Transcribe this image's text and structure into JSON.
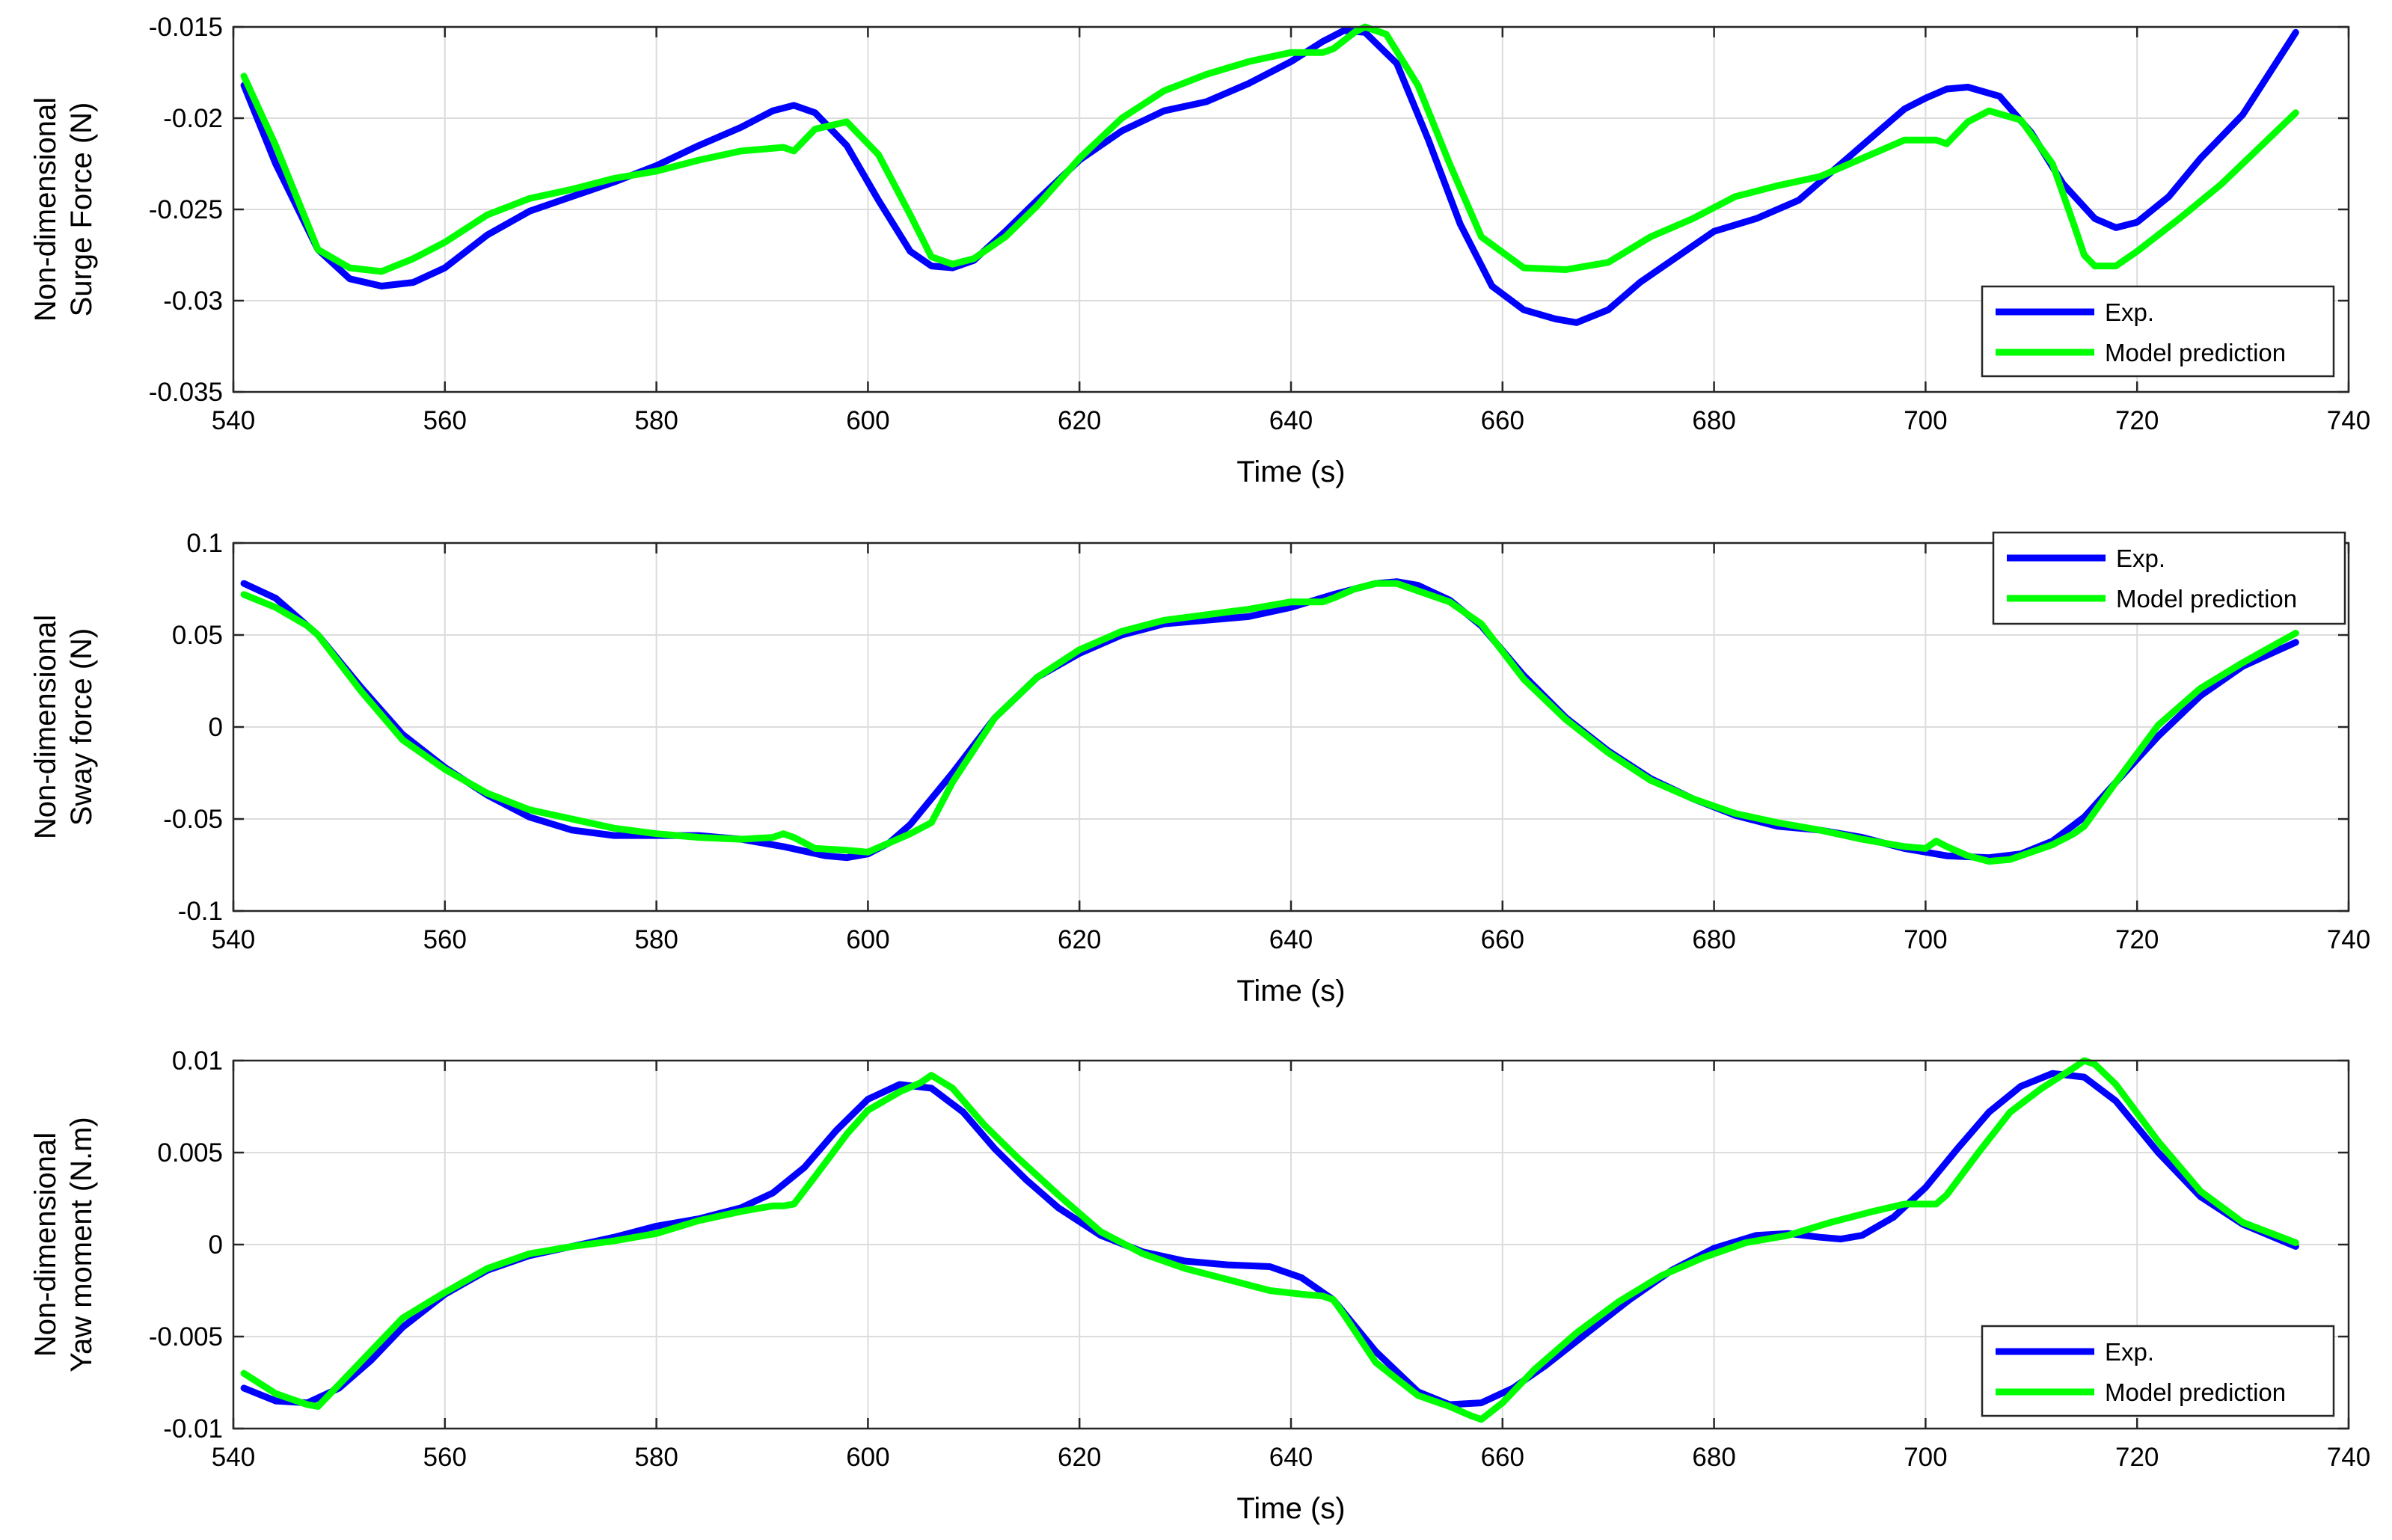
{
  "colors": {
    "exp": "#0000ff",
    "model": "#00ff00",
    "grid": "#dcdcdc",
    "axis": "#262626"
  },
  "chart_data": [
    {
      "type": "line",
      "xlabel": "Time (s)",
      "ylabel": [
        "Non-dimensional",
        "Surge Force (N)"
      ],
      "xlim": [
        540,
        740
      ],
      "ylim": [
        -0.035,
        -0.015
      ],
      "xticks": [
        540,
        560,
        580,
        600,
        620,
        640,
        660,
        680,
        700,
        720,
        740
      ],
      "xtick_labels": [
        "540",
        "560",
        "580",
        "600",
        "620",
        "640",
        "660",
        "680",
        "700",
        "720",
        "740"
      ],
      "yticks": [
        -0.035,
        -0.03,
        -0.025,
        -0.02,
        -0.015
      ],
      "ytick_labels": [
        "-0.035",
        "-0.03",
        "-0.025",
        "-0.02",
        "-0.015"
      ],
      "grid": true,
      "legend_position": "bottom-right",
      "series": [
        {
          "name": "Exp.",
          "color": "#0000ff",
          "x": [
            541,
            544,
            548,
            551,
            554,
            557,
            560,
            564,
            568,
            572,
            576,
            580,
            584,
            588,
            591,
            593,
            595,
            598,
            601,
            604,
            606,
            608,
            610,
            613,
            616,
            620,
            624,
            628,
            632,
            636,
            640,
            643,
            645,
            647,
            650,
            653,
            656,
            659,
            662,
            665,
            667,
            670,
            673,
            676,
            680,
            684,
            688,
            692,
            695,
            698,
            700,
            702,
            704,
            707,
            710,
            713,
            716,
            718,
            720,
            723,
            726,
            730,
            735
          ],
          "y": [
            -0.0182,
            -0.0225,
            -0.0272,
            -0.0288,
            -0.0292,
            -0.029,
            -0.0282,
            -0.0264,
            -0.0251,
            -0.0243,
            -0.0235,
            -0.0226,
            -0.0215,
            -0.0205,
            -0.0196,
            -0.0193,
            -0.0197,
            -0.0215,
            -0.0245,
            -0.0273,
            -0.0281,
            -0.0282,
            -0.0278,
            -0.0262,
            -0.0245,
            -0.0223,
            -0.0207,
            -0.0196,
            -0.0191,
            -0.0181,
            -0.0169,
            -0.0158,
            -0.0152,
            -0.0153,
            -0.017,
            -0.0212,
            -0.0258,
            -0.0292,
            -0.0305,
            -0.031,
            -0.0312,
            -0.0305,
            -0.029,
            -0.0278,
            -0.0262,
            -0.0255,
            -0.0245,
            -0.0225,
            -0.021,
            -0.0195,
            -0.0189,
            -0.0184,
            -0.0183,
            -0.0188,
            -0.0208,
            -0.0236,
            -0.0255,
            -0.026,
            -0.0257,
            -0.0243,
            -0.0222,
            -0.0198,
            -0.0153
          ]
        },
        {
          "name": "Model prediction",
          "color": "#00ff00",
          "x": [
            541,
            544,
            548,
            551,
            554,
            557,
            560,
            564,
            568,
            572,
            576,
            580,
            584,
            588,
            592,
            593,
            595,
            598,
            601,
            604,
            606,
            608,
            610,
            613,
            616,
            620,
            624,
            628,
            632,
            636,
            640,
            643,
            644,
            646,
            647,
            649,
            652,
            655,
            658,
            662,
            666,
            670,
            674,
            678,
            682,
            686,
            690,
            694,
            698,
            701,
            702,
            704,
            706,
            709,
            712,
            714,
            715,
            716,
            718,
            720,
            724,
            728,
            735
          ],
          "y": [
            -0.0177,
            -0.0215,
            -0.0272,
            -0.0282,
            -0.0284,
            -0.0277,
            -0.0268,
            -0.0253,
            -0.0244,
            -0.0239,
            -0.0233,
            -0.0229,
            -0.0223,
            -0.0218,
            -0.0216,
            -0.0218,
            -0.0206,
            -0.0202,
            -0.022,
            -0.0253,
            -0.0276,
            -0.028,
            -0.0277,
            -0.0265,
            -0.0248,
            -0.0222,
            -0.02,
            -0.0185,
            -0.0176,
            -0.0169,
            -0.0164,
            -0.0164,
            -0.0162,
            -0.0153,
            -0.015,
            -0.0154,
            -0.0182,
            -0.0225,
            -0.0265,
            -0.0282,
            -0.0283,
            -0.0279,
            -0.0265,
            -0.0255,
            -0.0243,
            -0.0237,
            -0.0232,
            -0.0222,
            -0.0212,
            -0.0212,
            -0.0214,
            -0.0202,
            -0.0196,
            -0.0201,
            -0.0225,
            -0.0258,
            -0.0275,
            -0.0281,
            -0.0281,
            -0.0273,
            -0.0255,
            -0.0236,
            -0.0197
          ]
        }
      ]
    },
    {
      "type": "line",
      "xlabel": "Time (s)",
      "ylabel": [
        "Non-dimensional",
        "Sway force (N)"
      ],
      "xlim": [
        540,
        740
      ],
      "ylim": [
        -0.1,
        0.1
      ],
      "xticks": [
        540,
        560,
        580,
        600,
        620,
        640,
        660,
        680,
        700,
        720,
        740
      ],
      "xtick_labels": [
        "540",
        "560",
        "580",
        "600",
        "620",
        "640",
        "660",
        "680",
        "700",
        "720",
        "740"
      ],
      "yticks": [
        -0.1,
        -0.05,
        0,
        0.05,
        0.1
      ],
      "ytick_labels": [
        "-0.1",
        "-0.05",
        "0",
        "0.05",
        "0.1"
      ],
      "grid": true,
      "legend_position": "top-right",
      "series": [
        {
          "name": "Exp.",
          "color": "#0000ff",
          "x": [
            541,
            544,
            548,
            552,
            556,
            560,
            564,
            568,
            572,
            576,
            580,
            584,
            588,
            592,
            596,
            598,
            600,
            602,
            604,
            608,
            612,
            616,
            620,
            624,
            628,
            632,
            636,
            640,
            644,
            648,
            650,
            652,
            655,
            658,
            662,
            666,
            670,
            674,
            678,
            682,
            686,
            690,
            694,
            698,
            702,
            706,
            709,
            712,
            715,
            718,
            722,
            726,
            730,
            735
          ],
          "y": [
            0.078,
            0.07,
            0.05,
            0.022,
            -0.004,
            -0.022,
            -0.037,
            -0.049,
            -0.056,
            -0.059,
            -0.059,
            -0.059,
            -0.061,
            -0.065,
            -0.07,
            -0.071,
            -0.069,
            -0.063,
            -0.053,
            -0.025,
            0.005,
            0.027,
            0.04,
            0.05,
            0.056,
            0.058,
            0.06,
            0.065,
            0.072,
            0.078,
            0.079,
            0.077,
            0.069,
            0.055,
            0.028,
            0.005,
            -0.013,
            -0.028,
            -0.039,
            -0.048,
            -0.054,
            -0.056,
            -0.06,
            -0.066,
            -0.07,
            -0.071,
            -0.069,
            -0.062,
            -0.049,
            -0.03,
            -0.005,
            0.017,
            0.033,
            0.046
          ]
        },
        {
          "name": "Model prediction",
          "color": "#00ff00",
          "x": [
            541,
            544,
            547,
            548,
            552,
            556,
            560,
            564,
            568,
            572,
            576,
            580,
            584,
            588,
            591,
            592,
            593,
            595,
            598,
            600,
            602,
            604,
            606,
            608,
            612,
            616,
            620,
            624,
            628,
            632,
            636,
            640,
            643,
            644,
            646,
            648,
            650,
            652,
            655,
            657,
            658,
            662,
            666,
            670,
            674,
            678,
            682,
            686,
            690,
            694,
            698,
            700,
            701,
            702,
            704,
            706,
            708,
            710,
            712,
            714,
            715,
            718,
            722,
            726,
            730,
            735
          ],
          "y": [
            0.072,
            0.065,
            0.055,
            0.05,
            0.02,
            -0.007,
            -0.023,
            -0.036,
            -0.045,
            -0.05,
            -0.055,
            -0.058,
            -0.06,
            -0.061,
            -0.06,
            -0.058,
            -0.06,
            -0.066,
            -0.067,
            -0.068,
            -0.063,
            -0.058,
            -0.052,
            -0.03,
            0.005,
            0.027,
            0.042,
            0.052,
            0.058,
            0.061,
            0.064,
            0.068,
            0.068,
            0.07,
            0.075,
            0.078,
            0.078,
            0.074,
            0.068,
            0.06,
            0.056,
            0.026,
            0.004,
            -0.014,
            -0.029,
            -0.039,
            -0.047,
            -0.052,
            -0.056,
            -0.061,
            -0.065,
            -0.066,
            -0.062,
            -0.065,
            -0.07,
            -0.073,
            -0.072,
            -0.068,
            -0.064,
            -0.058,
            -0.054,
            -0.03,
            0.001,
            0.021,
            0.035,
            0.051
          ]
        }
      ]
    },
    {
      "type": "line",
      "xlabel": "Time (s)",
      "ylabel": [
        "Non-dimensional",
        "Yaw moment (N.m)"
      ],
      "xlim": [
        540,
        740
      ],
      "ylim": [
        -0.01,
        0.01
      ],
      "xticks": [
        540,
        560,
        580,
        600,
        620,
        640,
        660,
        680,
        700,
        720,
        740
      ],
      "xtick_labels": [
        "540",
        "560",
        "580",
        "600",
        "620",
        "640",
        "660",
        "680",
        "700",
        "720",
        "740"
      ],
      "yticks": [
        -0.01,
        -0.005,
        0,
        0.005,
        0.01
      ],
      "ytick_labels": [
        "-0.01",
        "-0.005",
        "0",
        "0.005",
        "0.01"
      ],
      "grid": true,
      "legend_position": "bottom-right",
      "series": [
        {
          "name": "Exp.",
          "color": "#0000ff",
          "x": [
            541,
            544,
            547,
            550,
            553,
            556,
            560,
            564,
            568,
            572,
            576,
            580,
            584,
            588,
            591,
            594,
            597,
            600,
            603,
            606,
            609,
            612,
            615,
            618,
            622,
            626,
            630,
            634,
            638,
            641,
            644,
            648,
            652,
            655,
            658,
            661,
            664,
            668,
            672,
            676,
            680,
            684,
            687,
            690,
            692,
            694,
            697,
            700,
            703,
            706,
            709,
            712,
            715,
            718,
            722,
            726,
            730,
            735
          ],
          "y": [
            -0.0078,
            -0.0085,
            -0.0086,
            -0.0078,
            -0.0063,
            -0.0045,
            -0.0027,
            -0.0014,
            -0.0006,
            -0.0001,
            0.0004,
            0.001,
            0.0014,
            0.002,
            0.0028,
            0.0042,
            0.0062,
            0.0079,
            0.0087,
            0.0085,
            0.0072,
            0.0052,
            0.0035,
            0.002,
            0.0005,
            -0.0004,
            -0.0009,
            -0.0011,
            -0.0012,
            -0.0018,
            -0.003,
            -0.0058,
            -0.008,
            -0.0087,
            -0.0086,
            -0.0078,
            -0.0066,
            -0.0048,
            -0.003,
            -0.0014,
            -0.0002,
            0.0005,
            0.0006,
            0.0004,
            0.0003,
            0.0005,
            0.0015,
            0.0031,
            0.0052,
            0.0072,
            0.0086,
            0.0093,
            0.0091,
            0.0078,
            0.005,
            0.0026,
            0.0011,
            -0.0001
          ]
        },
        {
          "name": "Model prediction",
          "color": "#00ff00",
          "x": [
            541,
            544,
            547,
            548,
            550,
            553,
            556,
            560,
            564,
            568,
            572,
            576,
            580,
            584,
            588,
            591,
            592,
            593,
            595,
            598,
            600,
            603,
            605,
            606,
            608,
            611,
            614,
            618,
            622,
            626,
            630,
            634,
            638,
            641,
            643,
            644,
            645,
            648,
            652,
            655,
            657,
            658,
            660,
            663,
            667,
            671,
            675,
            679,
            683,
            687,
            691,
            695,
            698,
            700,
            701,
            702,
            705,
            708,
            711,
            714,
            715,
            716,
            718,
            722,
            726,
            730,
            735
          ],
          "y": [
            -0.007,
            -0.0081,
            -0.0087,
            -0.0088,
            -0.0076,
            -0.0058,
            -0.004,
            -0.0026,
            -0.0013,
            -0.0005,
            -0.0001,
            0.0002,
            0.0006,
            0.0013,
            0.0018,
            0.0021,
            0.0021,
            0.0022,
            0.0037,
            0.006,
            0.0073,
            0.0083,
            0.0088,
            0.0092,
            0.0085,
            0.0065,
            0.0048,
            0.0027,
            0.0007,
            -0.0005,
            -0.0013,
            -0.0019,
            -0.0025,
            -0.0027,
            -0.0028,
            -0.003,
            -0.0038,
            -0.0064,
            -0.0082,
            -0.0088,
            -0.0093,
            -0.0095,
            -0.0086,
            -0.0068,
            -0.0048,
            -0.0031,
            -0.0017,
            -0.0007,
            0.0001,
            0.0005,
            0.0012,
            0.0018,
            0.0022,
            0.0022,
            0.0022,
            0.0027,
            0.005,
            0.0072,
            0.0085,
            0.0096,
            0.01,
            0.0098,
            0.0087,
            0.0056,
            0.0029,
            0.0012,
            0.0001
          ]
        }
      ]
    }
  ]
}
